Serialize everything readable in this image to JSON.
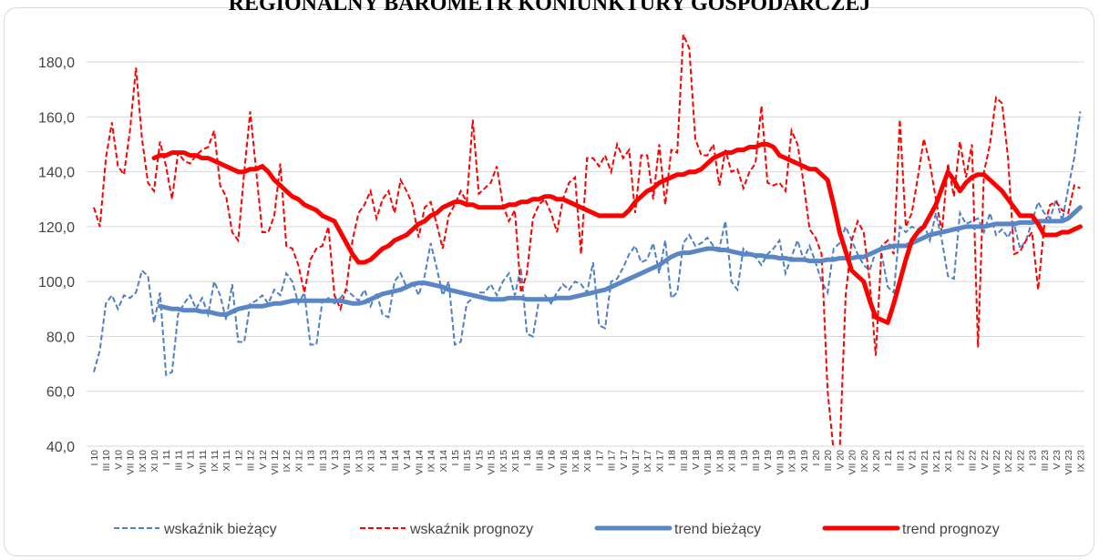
{
  "chart_data": {
    "type": "line",
    "title": "REGIONALNY BAROMETR KONIUNKTURY GOSPODARCZEJ",
    "categories": [
      "I 10",
      null,
      "III 10",
      null,
      "V 10",
      null,
      "VII 10",
      null,
      "IX 10",
      null,
      "XI 10",
      null,
      "I 11",
      null,
      "III 11",
      null,
      "V 11",
      null,
      "VII 11",
      null,
      "IX 11",
      null,
      "XI 11",
      null,
      "I 12",
      null,
      "III 12",
      null,
      "V 12",
      null,
      "VII 12",
      null,
      "IX 12",
      null,
      "XI 12",
      null,
      "I 13",
      null,
      "III 13",
      null,
      "V 13",
      null,
      "VII 13",
      null,
      "IX 13",
      null,
      "XI 13",
      null,
      "I 14",
      null,
      "III 14",
      null,
      "V 14",
      null,
      "VII 14",
      null,
      "IX 14",
      null,
      "XI 14",
      null,
      "I 15",
      null,
      "III 15",
      null,
      "V 15",
      null,
      "VII 15",
      null,
      "IX 15",
      null,
      "XI 15",
      null,
      "I 16",
      null,
      "III 16",
      null,
      "V 16",
      null,
      "VII 16",
      null,
      "IX 16",
      null,
      "XI 16",
      null,
      "I 17",
      null,
      "III 17",
      null,
      "V 17",
      null,
      "VII 17",
      null,
      "IX 17",
      null,
      "XI 17",
      null,
      "I 18",
      null,
      "III 18",
      null,
      "V 18",
      null,
      "VII 18",
      null,
      "IX 18",
      null,
      "XI 18",
      null,
      "I 19",
      null,
      "III 19",
      null,
      "V 19",
      null,
      "VII 19",
      null,
      "IX 19",
      null,
      "XI 19",
      null,
      "I 20",
      null,
      "III 20",
      null,
      "V 20",
      null,
      "VII 20",
      null,
      "IX 20",
      null,
      "XI 20",
      null,
      "I 21",
      null,
      "III 21",
      null,
      "V 21",
      null,
      "VII 21",
      null,
      "IX 21",
      null,
      "XI 21",
      null,
      "I 22",
      null,
      "III 22",
      null,
      "V 22",
      null,
      "VII 22",
      null,
      "IX 22",
      null,
      "XI 22",
      null,
      "I 23",
      null,
      "III 23",
      null,
      "V 23",
      null,
      "VII 23",
      null,
      "IX 23"
    ],
    "series": [
      {
        "name": "wskaźnik bieżący",
        "color": "#4f7fc4",
        "style": "dashed",
        "values": [
          67,
          75,
          92,
          95,
          90,
          95,
          94,
          96,
          104,
          102,
          85,
          96,
          66,
          67,
          88,
          92,
          95,
          90,
          94,
          88,
          100,
          95,
          86,
          99,
          78,
          78,
          92,
          93,
          95,
          92,
          97,
          95,
          103,
          100,
          92,
          96,
          77,
          77,
          93,
          94,
          92,
          94,
          97,
          95,
          93,
          97,
          91,
          96,
          88,
          87,
          100,
          103,
          98,
          100,
          95,
          102,
          114,
          105,
          95,
          100,
          77,
          78,
          92,
          94,
          96,
          96,
          99,
          95,
          100,
          103,
          95,
          105,
          81,
          80,
          93,
          95,
          92,
          96,
          99,
          97,
          100,
          99,
          96,
          107,
          84,
          83,
          100,
          101,
          105,
          110,
          113,
          107,
          108,
          114,
          103,
          115,
          94,
          96,
          114,
          117,
          113,
          114,
          116,
          113,
          112,
          122,
          100,
          97,
          112,
          110,
          109,
          106,
          110,
          112,
          115,
          103,
          109,
          115,
          108,
          113,
          107,
          100,
          96,
          112,
          114,
          120,
          115,
          110,
          106,
          104,
          111,
          110,
          98,
          96,
          120,
          118,
          120,
          119,
          121,
          115,
          125,
          115,
          102,
          101,
          125,
          121,
          122,
          123,
          118,
          125,
          117,
          119,
          116,
          121,
          112,
          115,
          122,
          129,
          125,
          123,
          130,
          122,
          134,
          145,
          162
        ]
      },
      {
        "name": "wskaźnik prognozy",
        "color": "#ff0000",
        "style": "dashed",
        "values": [
          127,
          120,
          145,
          158,
          142,
          139,
          155,
          178,
          152,
          136,
          133,
          151,
          142,
          130,
          147,
          144,
          143,
          146,
          148,
          149,
          155,
          135,
          131,
          118,
          115,
          140,
          162,
          140,
          118,
          118,
          124,
          143,
          113,
          112,
          106,
          96,
          108,
          112,
          113,
          120,
          95,
          90,
          98,
          115,
          125,
          128,
          133,
          123,
          130,
          133,
          125,
          137,
          133,
          128,
          116,
          127,
          129,
          121,
          112,
          124,
          128,
          133,
          129,
          159,
          132,
          134,
          136,
          142,
          128,
          122,
          126,
          96,
          103,
          123,
          128,
          130,
          125,
          118,
          130,
          136,
          138,
          110,
          145,
          145,
          142,
          146,
          140,
          150,
          145,
          148,
          125,
          146,
          146,
          130,
          150,
          128,
          148,
          147,
          190,
          185,
          152,
          146,
          146,
          150,
          135,
          148,
          140,
          141,
          134,
          140,
          143,
          164,
          136,
          135,
          136,
          133,
          155,
          150,
          136,
          119,
          116,
          110,
          60,
          38,
          38,
          95,
          115,
          122,
          118,
          100,
          73,
          113,
          115,
          110,
          159,
          120,
          125,
          138,
          152,
          143,
          130,
          118,
          143,
          131,
          151,
          138,
          150,
          76,
          140,
          150,
          167,
          165,
          145,
          110,
          111,
          115,
          118,
          97,
          120,
          128,
          129,
          126,
          125,
          135,
          134
        ]
      },
      {
        "name": "trend bieżący",
        "color": "#5b86c5",
        "style": "thick",
        "values": [
          null,
          null,
          null,
          null,
          null,
          null,
          null,
          null,
          null,
          null,
          null,
          91,
          90.5,
          90,
          90,
          89.5,
          89.5,
          89.5,
          89,
          89,
          88.5,
          88,
          88,
          89,
          90,
          90.5,
          91,
          91,
          91,
          91.5,
          92,
          92,
          92.5,
          93,
          93,
          93,
          93,
          93,
          93,
          93,
          93,
          93,
          92.5,
          92,
          92,
          92.5,
          93.5,
          94.5,
          95.5,
          96,
          96.5,
          97,
          98,
          99,
          99.5,
          99.5,
          99,
          98.5,
          98,
          97,
          96.5,
          96,
          95.5,
          95,
          94.5,
          94,
          93.5,
          93.5,
          93.5,
          94,
          94,
          94,
          93.5,
          93.5,
          93.5,
          93.5,
          93.5,
          94,
          94,
          94,
          94.5,
          95,
          95.5,
          96,
          96.5,
          97,
          98,
          99,
          100,
          101,
          102,
          103,
          104,
          105,
          106,
          107.5,
          109,
          110,
          110.5,
          110.5,
          111,
          111.5,
          112,
          112,
          111.5,
          111.5,
          111,
          110.5,
          110,
          110,
          109.5,
          109.5,
          109,
          109,
          108.5,
          108.5,
          108,
          108,
          108,
          107.5,
          107.5,
          107.5,
          108,
          108,
          108.5,
          108.5,
          108.5,
          109,
          109,
          110,
          111,
          112,
          112.5,
          113,
          113,
          113,
          114,
          115,
          116,
          117,
          117.5,
          118,
          118.5,
          119,
          119.5,
          120,
          120,
          120,
          120,
          120.5,
          121,
          121,
          121,
          121,
          121.5,
          121.5,
          121.5,
          122,
          122,
          122,
          122,
          122,
          123,
          125,
          127
        ]
      },
      {
        "name": "trend prognozy",
        "color": "#ff0000",
        "style": "thick",
        "values": [
          null,
          null,
          null,
          null,
          null,
          null,
          null,
          null,
          null,
          null,
          145,
          146,
          146,
          147,
          147,
          147,
          146,
          146,
          145,
          145,
          144,
          143,
          142,
          141,
          140,
          140,
          141,
          141,
          142,
          140,
          137,
          135,
          133,
          131,
          130,
          128,
          127,
          126,
          124,
          123,
          122,
          118,
          114,
          110,
          107,
          107,
          108,
          110,
          112,
          113,
          115,
          116,
          117,
          119,
          121,
          122,
          124,
          125,
          127,
          128,
          129,
          129,
          128,
          128,
          127,
          127,
          127,
          127,
          127,
          128,
          128,
          129,
          129,
          130,
          130,
          131,
          131,
          130,
          130,
          129,
          128,
          127,
          126,
          125,
          124,
          124,
          124,
          124,
          124,
          126,
          129,
          131,
          133,
          134,
          136,
          137,
          138,
          139,
          139,
          140,
          140,
          141,
          143,
          145,
          146,
          147,
          147,
          148,
          148,
          149,
          149,
          150,
          150,
          149,
          146,
          145,
          144,
          143,
          142,
          141,
          141,
          139,
          137,
          128,
          118,
          111,
          104,
          102,
          100,
          93,
          87,
          86,
          85,
          92,
          100,
          108,
          115,
          118,
          120,
          124,
          128,
          134,
          140,
          137,
          133,
          136,
          138,
          139,
          139,
          137,
          135,
          133,
          130,
          127,
          124,
          124,
          124,
          121,
          117,
          117,
          117,
          118,
          118,
          119,
          120
        ]
      }
    ],
    "ylim": [
      40,
      190
    ],
    "yticks": [
      {
        "value": 40,
        "label": "40,0"
      },
      {
        "value": 60,
        "label": "60,0"
      },
      {
        "value": 80,
        "label": "80,0"
      },
      {
        "value": 100,
        "label": "100,0"
      },
      {
        "value": 120,
        "label": "120,0"
      },
      {
        "value": 140,
        "label": "140,0"
      },
      {
        "value": 160,
        "label": "160,0"
      },
      {
        "value": 180,
        "label": "180,0"
      }
    ],
    "grid": true,
    "legend": "bottom"
  }
}
